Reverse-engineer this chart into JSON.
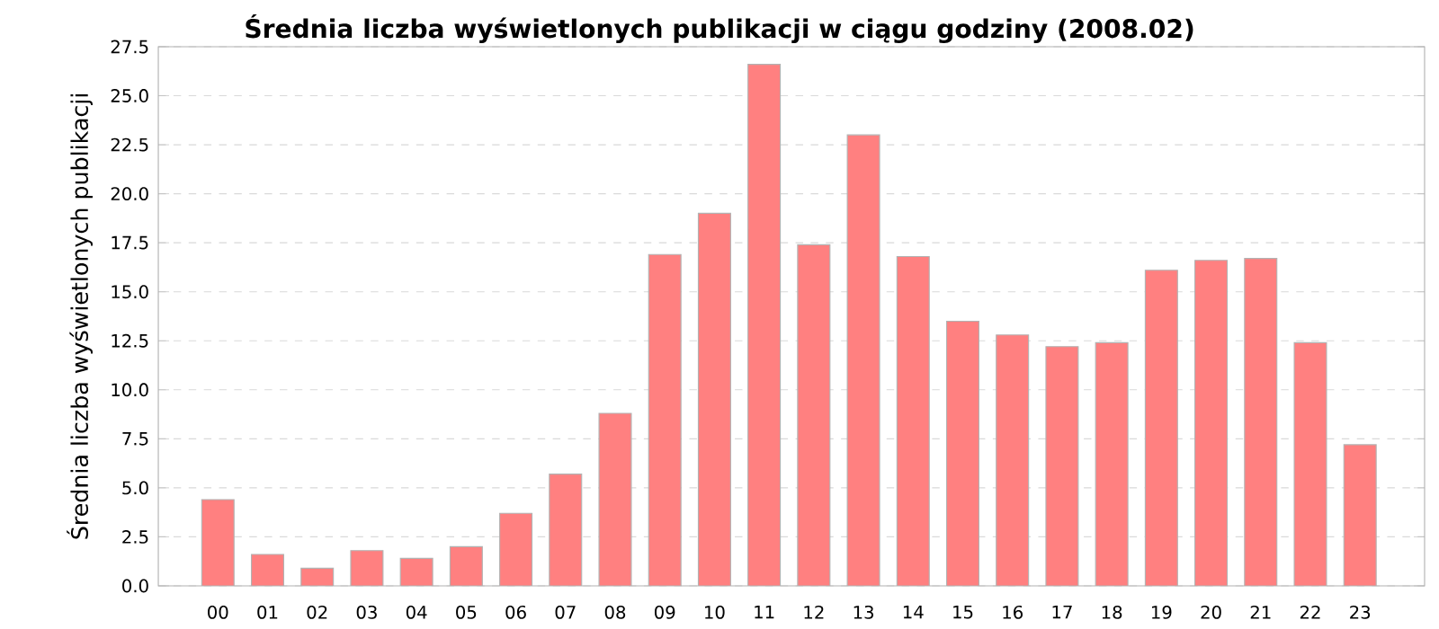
{
  "chart_data": {
    "type": "bar",
    "title": "Średnia liczba wyświetlonych publikacji w ciągu godziny (2008.02)",
    "ylabel": "Średnia liczba wyświetlonych publikacji",
    "categories": [
      "00",
      "01",
      "02",
      "03",
      "04",
      "05",
      "06",
      "07",
      "08",
      "09",
      "10",
      "11",
      "12",
      "13",
      "14",
      "15",
      "16",
      "17",
      "18",
      "19",
      "20",
      "21",
      "22",
      "23"
    ],
    "values": [
      4.4,
      1.6,
      0.9,
      1.8,
      1.4,
      2.0,
      3.7,
      5.7,
      8.8,
      16.9,
      19.0,
      26.6,
      17.4,
      23.0,
      16.8,
      13.5,
      12.8,
      12.2,
      12.4,
      16.1,
      16.6,
      16.7,
      12.4,
      7.2
    ],
    "color": "#ff8080",
    "ylim": [
      0,
      27.5
    ],
    "yticks": [
      {
        "value": 0,
        "label": "0.0"
      },
      2.5,
      {
        "value": 5,
        "label": "5.0"
      },
      7.5,
      {
        "value": 10,
        "label": "10.0"
      },
      12.5,
      {
        "value": 15,
        "label": "15.0"
      },
      17.5,
      {
        "value": 20,
        "label": "20.0"
      },
      22.5,
      {
        "value": 25,
        "label": "25.0"
      },
      27.5
    ],
    "grid": "y"
  }
}
